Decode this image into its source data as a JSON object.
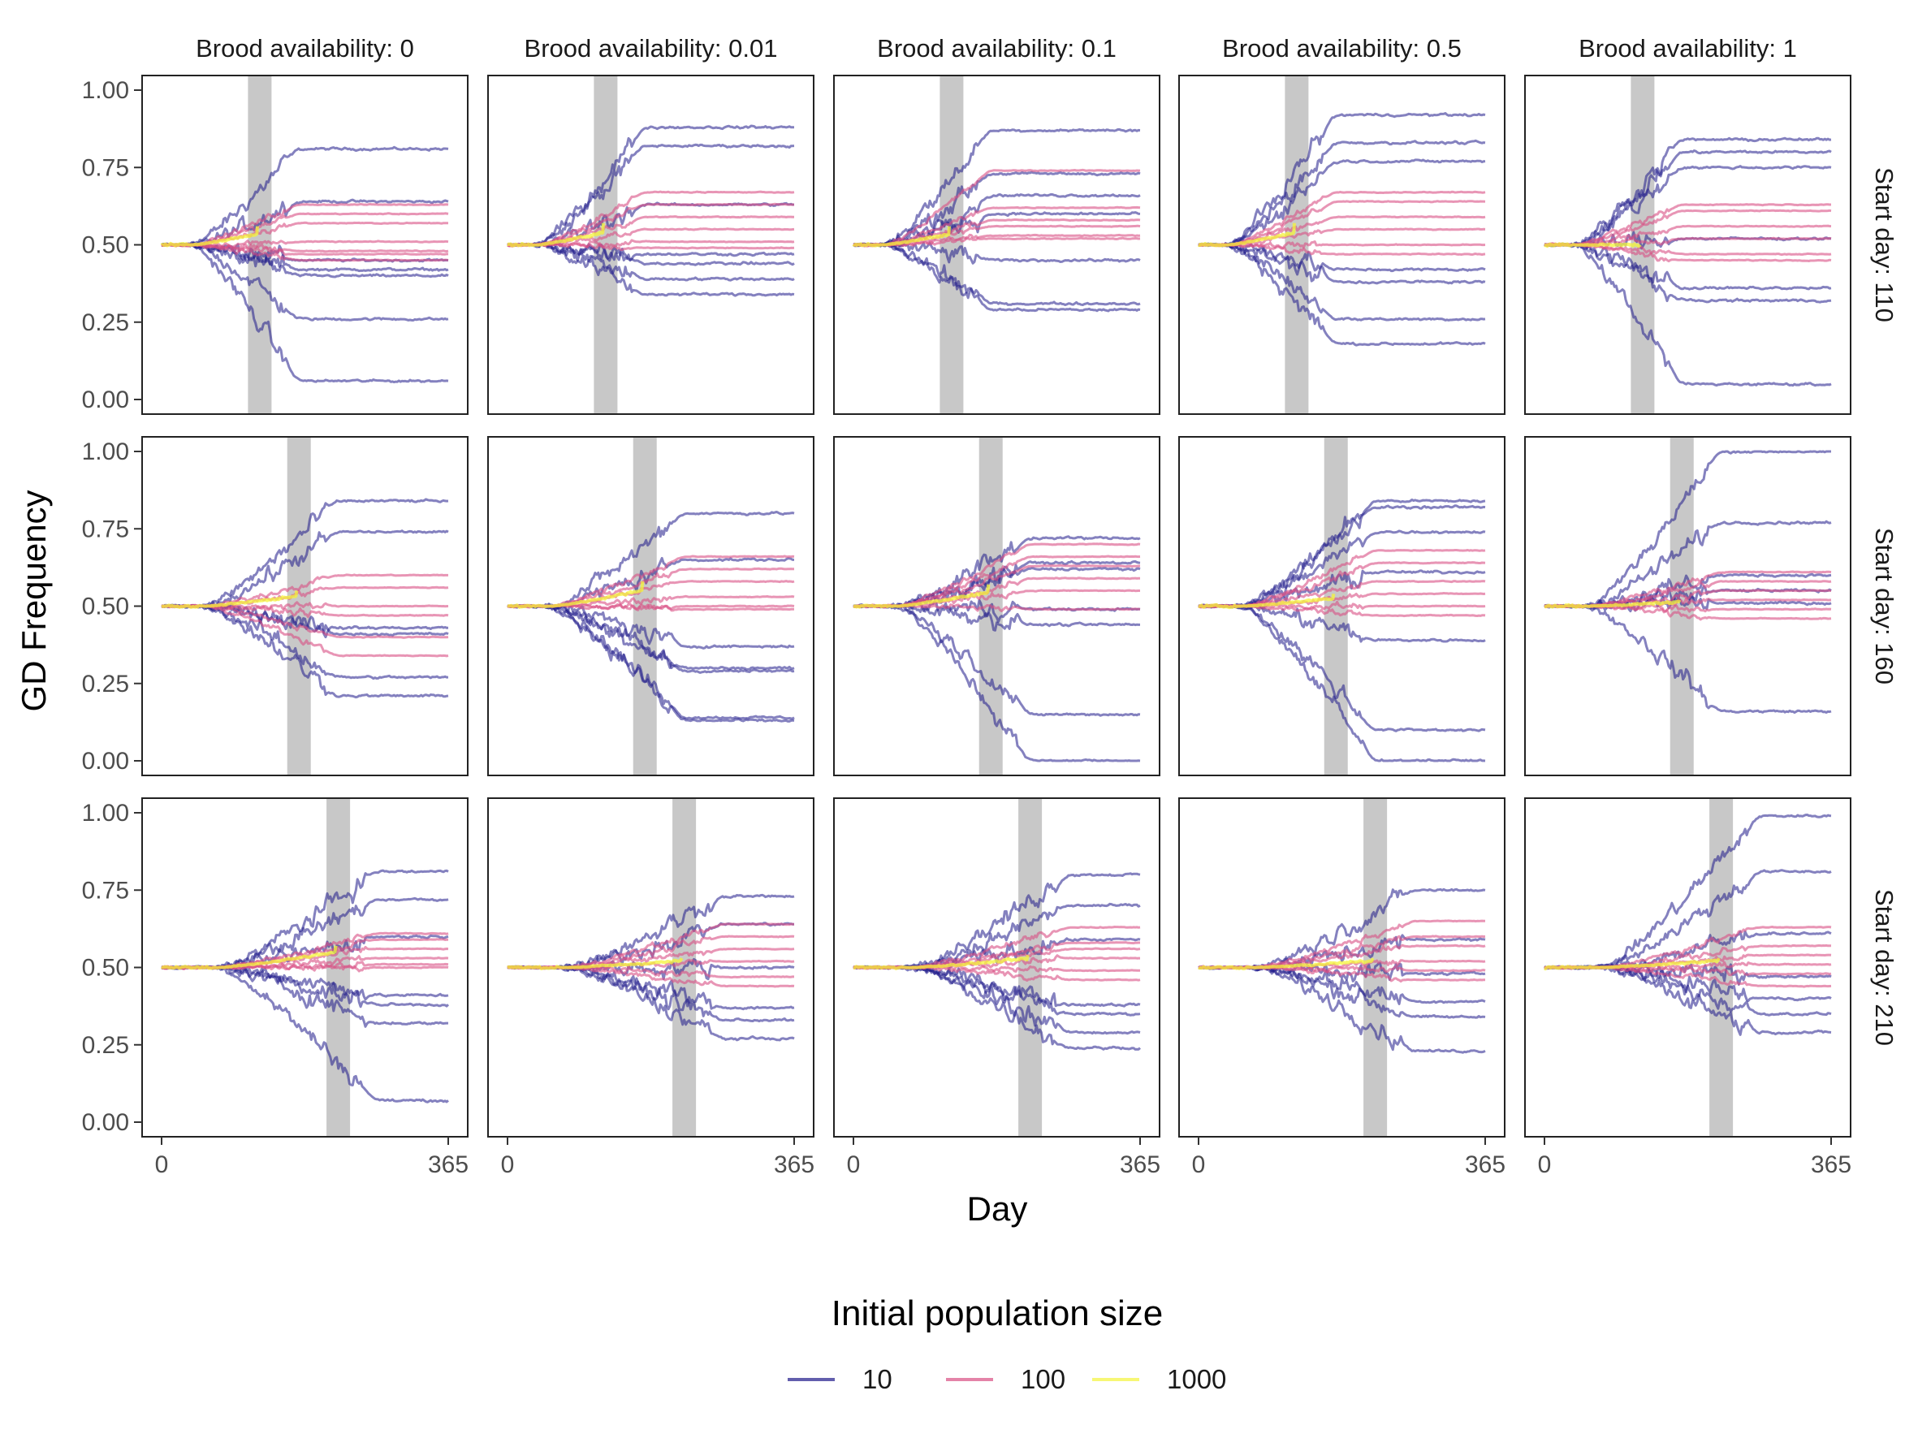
{
  "chart_data": {
    "type": "line",
    "facet_rows_label": "Start day",
    "facet_cols_label": "Brood availability",
    "brood_availability": [
      "0",
      "0.01",
      "0.1",
      "0.5",
      "1"
    ],
    "start_days": [
      "110",
      "160",
      "210"
    ],
    "col_strip_labels": [
      "Brood availability: 0",
      "Brood availability: 0.01",
      "Brood availability: 0.1",
      "Brood availability: 0.5",
      "Brood availability: 1"
    ],
    "row_strip_labels": [
      "Start day: 110",
      "Start day: 160",
      "Start day: 210"
    ],
    "xlabel": "Day",
    "ylabel": "GD Frequency",
    "xlim": [
      0,
      365
    ],
    "ylim": [
      0,
      1
    ],
    "x_ticks": [
      "0",
      "365"
    ],
    "y_ticks": [
      "0.00",
      "0.25",
      "0.50",
      "0.75",
      "1.00"
    ],
    "release_window_days": 30,
    "grid": false,
    "legend": {
      "title": "Initial population size",
      "position": "bottom",
      "entries": [
        {
          "label": "10",
          "color": "#1f1a8a"
        },
        {
          "label": "100",
          "color": "#d94f83"
        },
        {
          "label": "1000",
          "color": "#f4f43a"
        }
      ]
    },
    "panels": [
      {
        "brood": "0",
        "start": "110",
        "final_values": {
          "10": [
            0.81,
            0.64,
            0.45,
            0.42,
            0.4,
            0.26,
            0.06
          ],
          "100": [
            0.63,
            0.6,
            0.57,
            0.51,
            0.48,
            0.47,
            0.45
          ],
          "1000": [
            0.56
          ]
        }
      },
      {
        "brood": "0.01",
        "start": "110",
        "final_values": {
          "10": [
            0.88,
            0.82,
            0.63,
            0.47,
            0.44,
            0.39,
            0.34
          ],
          "100": [
            0.67,
            0.63,
            0.59,
            0.55,
            0.51,
            0.49
          ],
          "1000": [
            0.57
          ]
        }
      },
      {
        "brood": "0.1",
        "start": "110",
        "final_values": {
          "10": [
            0.87,
            0.73,
            0.66,
            0.6,
            0.45,
            0.31,
            0.29
          ],
          "100": [
            0.74,
            0.62,
            0.58,
            0.56,
            0.53,
            0.52
          ],
          "1000": [
            0.56
          ]
        }
      },
      {
        "brood": "0.5",
        "start": "110",
        "final_values": {
          "10": [
            0.92,
            0.83,
            0.77,
            0.42,
            0.38,
            0.26,
            0.18
          ],
          "100": [
            0.67,
            0.64,
            0.59,
            0.55,
            0.5,
            0.47
          ],
          "1000": [
            0.57
          ]
        }
      },
      {
        "brood": "1",
        "start": "110",
        "final_values": {
          "10": [
            0.84,
            0.8,
            0.75,
            0.52,
            0.36,
            0.32,
            0.05
          ],
          "100": [
            0.63,
            0.61,
            0.56,
            0.52,
            0.47,
            0.45
          ],
          "1000": [
            0.5
          ]
        }
      },
      {
        "brood": "0",
        "start": "160",
        "final_values": {
          "10": [
            0.84,
            0.74,
            0.43,
            0.41,
            0.27,
            0.21
          ],
          "100": [
            0.6,
            0.56,
            0.5,
            0.47,
            0.4,
            0.34
          ],
          "1000": [
            0.55
          ]
        }
      },
      {
        "brood": "0.01",
        "start": "160",
        "final_values": {
          "10": [
            0.8,
            0.65,
            0.37,
            0.3,
            0.29,
            0.14,
            0.13
          ],
          "100": [
            0.66,
            0.62,
            0.58,
            0.53,
            0.5,
            0.49
          ],
          "1000": [
            0.58
          ]
        }
      },
      {
        "brood": "0.1",
        "start": "160",
        "final_values": {
          "10": [
            0.72,
            0.64,
            0.62,
            0.49,
            0.44,
            0.15,
            0.0
          ],
          "100": [
            0.7,
            0.66,
            0.63,
            0.59,
            0.55,
            0.49
          ],
          "1000": [
            0.57
          ]
        }
      },
      {
        "brood": "0.5",
        "start": "160",
        "final_values": {
          "10": [
            0.84,
            0.82,
            0.74,
            0.61,
            0.39,
            0.1,
            0.0
          ],
          "100": [
            0.68,
            0.64,
            0.58,
            0.54,
            0.5,
            0.47
          ],
          "1000": [
            0.54
          ]
        }
      },
      {
        "brood": "1",
        "start": "160",
        "final_values": {
          "10": [
            1.0,
            0.77,
            0.6,
            0.55,
            0.51,
            0.16
          ],
          "100": [
            0.61,
            0.58,
            0.55,
            0.52,
            0.49,
            0.46
          ],
          "1000": [
            0.52
          ]
        }
      },
      {
        "brood": "0",
        "start": "210",
        "final_values": {
          "10": [
            0.81,
            0.72,
            0.6,
            0.41,
            0.38,
            0.32,
            0.07
          ],
          "100": [
            0.61,
            0.59,
            0.56,
            0.53,
            0.51,
            0.5
          ],
          "1000": [
            0.57
          ]
        }
      },
      {
        "brood": "0.01",
        "start": "210",
        "final_values": {
          "10": [
            0.73,
            0.64,
            0.5,
            0.37,
            0.33,
            0.27
          ],
          "100": [
            0.64,
            0.6,
            0.56,
            0.52,
            0.47,
            0.44
          ],
          "1000": [
            0.53
          ]
        }
      },
      {
        "brood": "0.1",
        "start": "210",
        "final_values": {
          "10": [
            0.8,
            0.7,
            0.59,
            0.38,
            0.35,
            0.29,
            0.24
          ],
          "100": [
            0.63,
            0.58,
            0.56,
            0.53,
            0.49,
            0.46
          ],
          "1000": [
            0.54
          ]
        }
      },
      {
        "brood": "0.5",
        "start": "210",
        "final_values": {
          "10": [
            0.75,
            0.59,
            0.48,
            0.39,
            0.34,
            0.23
          ],
          "100": [
            0.65,
            0.6,
            0.57,
            0.52,
            0.49,
            0.46
          ],
          "1000": [
            0.53
          ]
        }
      },
      {
        "brood": "1",
        "start": "210",
        "final_values": {
          "10": [
            0.99,
            0.81,
            0.61,
            0.47,
            0.4,
            0.35,
            0.29
          ],
          "100": [
            0.63,
            0.57,
            0.54,
            0.51,
            0.48,
            0.44
          ],
          "1000": [
            0.53
          ]
        }
      }
    ]
  }
}
